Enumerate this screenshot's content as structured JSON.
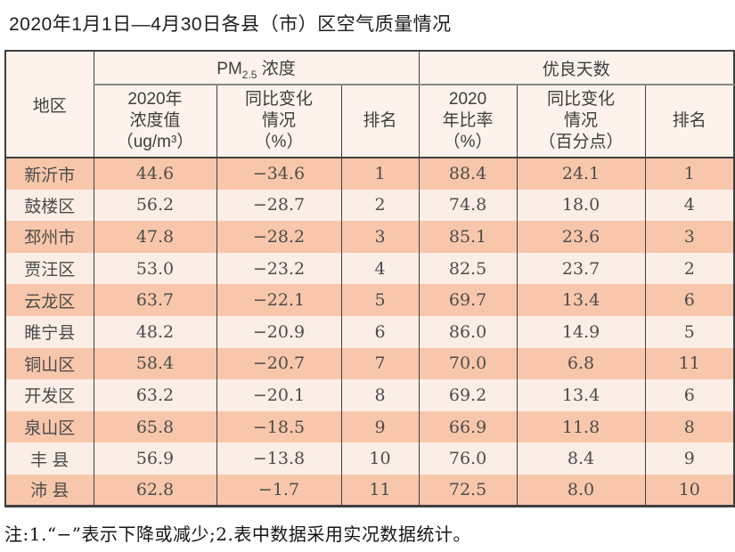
{
  "title": "2020年1月1日—4月30日各县（市）区空气质量情况",
  "table": {
    "header": {
      "region": "地区",
      "pm25_group": {
        "pre": "PM",
        "sub": "2.5",
        "post": " 浓度"
      },
      "days_group": "优良天数",
      "subheaders": [
        "2020年\n浓度值\n（ug/m³）",
        "同比变化\n情况\n（%）",
        "排名",
        "2020\n年比率\n（%）",
        "同比变化\n情况\n（百分点）",
        "排名"
      ]
    },
    "rows": [
      [
        "新沂市",
        "44.6",
        "−34.6",
        "1",
        "88.4",
        "24.1",
        "1"
      ],
      [
        "鼓楼区",
        "56.2",
        "−28.7",
        "2",
        "74.8",
        "18.0",
        "4"
      ],
      [
        "邳州市",
        "47.8",
        "−28.2",
        "3",
        "85.1",
        "23.6",
        "3"
      ],
      [
        "贾汪区",
        "53.0",
        "−23.2",
        "4",
        "82.5",
        "23.7",
        "2"
      ],
      [
        "云龙区",
        "63.7",
        "−22.1",
        "5",
        "69.7",
        "13.4",
        "6"
      ],
      [
        "睢宁县",
        "48.2",
        "−20.9",
        "6",
        "86.0",
        "14.9",
        "5"
      ],
      [
        "铜山区",
        "58.4",
        "−20.7",
        "7",
        "70.0",
        "6.8",
        "11"
      ],
      [
        "开发区",
        "63.2",
        "−20.1",
        "8",
        "69.2",
        "13.4",
        "6"
      ],
      [
        "泉山区",
        "65.8",
        "−18.5",
        "9",
        "66.9",
        "11.8",
        "8"
      ],
      [
        "丰 县",
        "56.9",
        "−13.8",
        "10",
        "76.0",
        "8.4",
        "9"
      ],
      [
        "沛 县",
        "62.8",
        "−1.7",
        "11",
        "72.5",
        "8.0",
        "10"
      ]
    ]
  },
  "footnote": "注:1.“−”表示下降或减少;2.表中数据采用实况数据统计。",
  "colors": {
    "row_salmon": "#f8c7ab",
    "row_pale": "#fbeee6",
    "header_bg": "#fdf3ec",
    "border_dark": "#3f3f3f",
    "group_underline": "#878787"
  }
}
